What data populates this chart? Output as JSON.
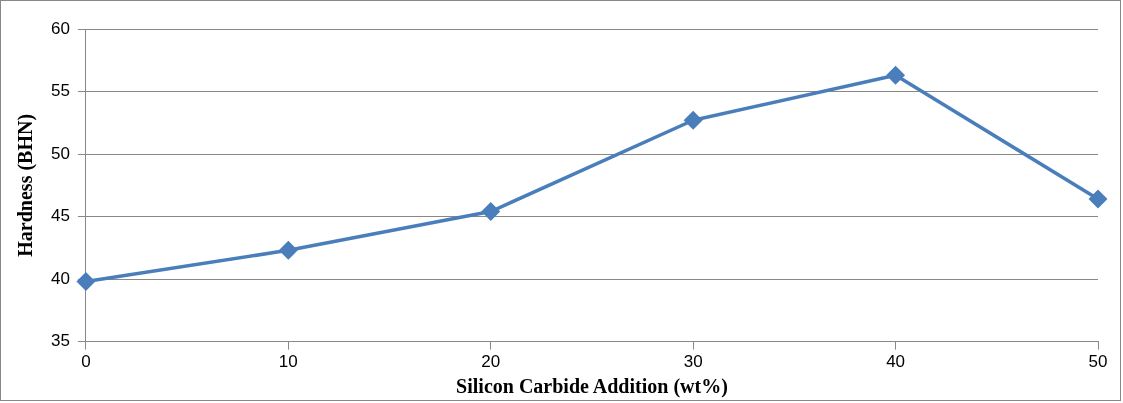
{
  "chart_data": {
    "type": "line",
    "xlabel": "Silicon Carbide Addition (wt%)",
    "ylabel": "Hardness (BHN)",
    "x": [
      0,
      10,
      20,
      30,
      40,
      50
    ],
    "series": [
      {
        "color": "#4a7ebb",
        "values": [
          39.8,
          42.3,
          45.4,
          52.7,
          56.3,
          46.4
        ]
      }
    ],
    "xlim": [
      0,
      50
    ],
    "xticks": [
      0,
      10,
      20,
      30,
      40,
      50
    ],
    "ylim": [
      35,
      60
    ],
    "yticks": [
      35,
      40,
      45,
      50,
      55,
      60
    ],
    "grid": "y",
    "legend": false,
    "marker": "diamond",
    "line_style": "solid"
  }
}
